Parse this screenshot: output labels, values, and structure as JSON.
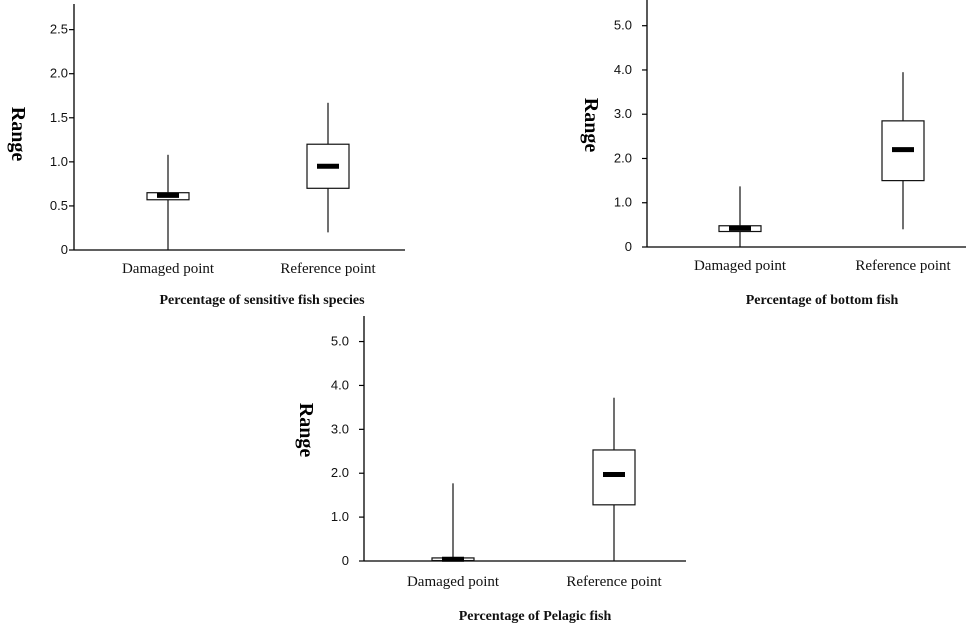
{
  "chart_data": [
    {
      "type": "box",
      "title": "Percentage of sensitive fish species",
      "ylabel": "Range",
      "yticks": [
        "0",
        "0.5",
        "1.0",
        "1.5",
        "2.0",
        "2.5"
      ],
      "ylim": [
        0,
        2.7
      ],
      "categories": [
        "Damaged point",
        "Reference point"
      ],
      "boxes": [
        {
          "min": 0,
          "q1": 0.57,
          "median": 0.62,
          "q3": 0.65,
          "max": 1.08
        },
        {
          "min": 0.2,
          "q1": 0.7,
          "median": 0.95,
          "q3": 1.2,
          "max": 1.67
        }
      ]
    },
    {
      "type": "box",
      "title": "Percentage of bottom fish",
      "ylabel": "Range",
      "yticks": [
        "0",
        "1.0",
        "2.0",
        "3.0",
        "4.0",
        "5.0"
      ],
      "ylim": [
        0,
        5.4
      ],
      "categories": [
        "Damaged point",
        "Reference point"
      ],
      "boxes": [
        {
          "min": 0,
          "q1": 0.35,
          "median": 0.42,
          "q3": 0.48,
          "max": 1.37
        },
        {
          "min": 0.4,
          "q1": 1.5,
          "median": 2.2,
          "q3": 2.85,
          "max": 3.95
        }
      ]
    },
    {
      "type": "box",
      "title": "Percentage of Pelagic fish",
      "ylabel": "Range",
      "yticks": [
        "0",
        "1.0",
        "2.0",
        "3.0",
        "4.0",
        "5.0"
      ],
      "ylim": [
        0,
        5.4
      ],
      "categories": [
        "Damaged point",
        "Reference point"
      ],
      "boxes": [
        {
          "min": 0,
          "q1": 0.01,
          "median": 0.04,
          "q3": 0.07,
          "max": 1.77
        },
        {
          "min": 0,
          "q1": 1.28,
          "median": 1.97,
          "q3": 2.53,
          "max": 3.72
        }
      ]
    }
  ]
}
